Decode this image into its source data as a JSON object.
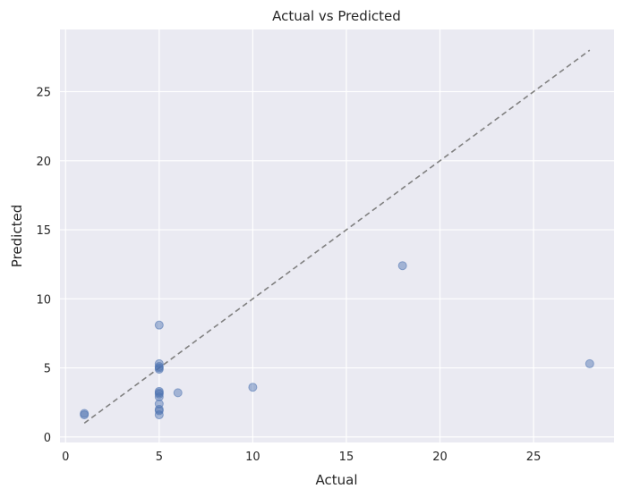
{
  "chart_data": {
    "type": "scatter",
    "title": "Actual vs Predicted",
    "xlabel": "Actual",
    "ylabel": "Predicted",
    "xlim": [
      -0.3,
      29.3
    ],
    "ylim": [
      -0.4,
      29.5
    ],
    "xticks": [
      0,
      5,
      10,
      15,
      20,
      25
    ],
    "yticks": [
      0,
      5,
      10,
      15,
      20,
      25
    ],
    "grid": true,
    "colors": {
      "background": "#eaeaf2",
      "grid": "#ffffff",
      "points": "#4c72b0",
      "reference_line": "#808080"
    },
    "reference_line": {
      "from": [
        1,
        1
      ],
      "to": [
        28,
        28
      ],
      "style": "dashed"
    },
    "points": [
      {
        "x": 1,
        "y": 1.6
      },
      {
        "x": 1,
        "y": 1.7
      },
      {
        "x": 5,
        "y": 8.1
      },
      {
        "x": 5,
        "y": 5.3
      },
      {
        "x": 5,
        "y": 5.1
      },
      {
        "x": 5,
        "y": 5.0
      },
      {
        "x": 5,
        "y": 4.9
      },
      {
        "x": 5,
        "y": 3.3
      },
      {
        "x": 5,
        "y": 3.2
      },
      {
        "x": 5,
        "y": 3.1
      },
      {
        "x": 5,
        "y": 2.9
      },
      {
        "x": 5,
        "y": 2.4
      },
      {
        "x": 5,
        "y": 2.0
      },
      {
        "x": 5,
        "y": 1.9
      },
      {
        "x": 5,
        "y": 1.6
      },
      {
        "x": 6,
        "y": 3.2
      },
      {
        "x": 10,
        "y": 3.6
      },
      {
        "x": 18,
        "y": 12.4
      },
      {
        "x": 28,
        "y": 5.3
      }
    ]
  }
}
